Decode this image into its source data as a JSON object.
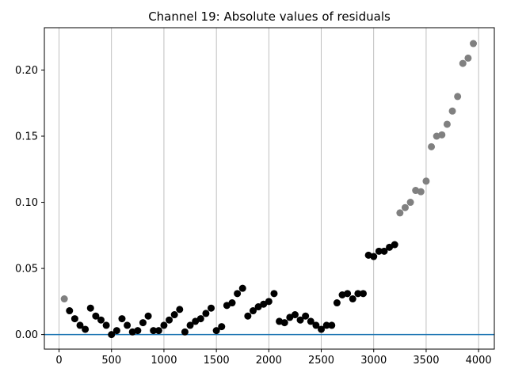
{
  "chart_data": {
    "type": "scatter",
    "title": "Channel 19: Absolute values of residuals",
    "xlabel": "",
    "ylabel": "",
    "xlim": [
      -140,
      4150
    ],
    "ylim": [
      -0.011,
      0.232
    ],
    "xticks": [
      0,
      500,
      1000,
      1500,
      2000,
      2500,
      3000,
      3500,
      4000
    ],
    "yticks": [
      0.0,
      0.05,
      0.1,
      0.15,
      0.2
    ],
    "ytick_labels": [
      "0.00",
      "0.05",
      "0.10",
      "0.15",
      "0.20"
    ],
    "grid": "x-only",
    "reference_line": {
      "y": 0.0,
      "color": "#1f77b4"
    },
    "colors": {
      "included": "#000000",
      "excluded": "#808080"
    },
    "series": [
      {
        "color": "#000000",
        "points": [
          [
            100,
            0.018
          ],
          [
            150,
            0.012
          ],
          [
            200,
            0.007
          ],
          [
            250,
            0.004
          ],
          [
            300,
            0.02
          ],
          [
            350,
            0.014
          ],
          [
            400,
            0.011
          ],
          [
            450,
            0.007
          ],
          [
            500,
            0.0
          ],
          [
            550,
            0.003
          ],
          [
            600,
            0.012
          ],
          [
            650,
            0.007
          ],
          [
            700,
            0.002
          ],
          [
            750,
            0.003
          ],
          [
            800,
            0.009
          ],
          [
            850,
            0.014
          ],
          [
            900,
            0.003
          ],
          [
            950,
            0.003
          ],
          [
            1000,
            0.007
          ],
          [
            1050,
            0.011
          ],
          [
            1100,
            0.015
          ],
          [
            1150,
            0.019
          ],
          [
            1200,
            0.002
          ],
          [
            1250,
            0.007
          ],
          [
            1300,
            0.01
          ],
          [
            1350,
            0.012
          ],
          [
            1400,
            0.016
          ],
          [
            1450,
            0.02
          ],
          [
            1500,
            0.003
          ],
          [
            1550,
            0.006
          ],
          [
            1600,
            0.022
          ],
          [
            1650,
            0.024
          ],
          [
            1700,
            0.031
          ],
          [
            1750,
            0.035
          ],
          [
            1800,
            0.014
          ],
          [
            1850,
            0.018
          ],
          [
            1900,
            0.021
          ],
          [
            1950,
            0.023
          ],
          [
            2000,
            0.025
          ],
          [
            2050,
            0.031
          ],
          [
            2100,
            0.01
          ],
          [
            2150,
            0.009
          ],
          [
            2200,
            0.013
          ],
          [
            2250,
            0.015
          ],
          [
            2300,
            0.011
          ],
          [
            2350,
            0.014
          ],
          [
            2400,
            0.01
          ],
          [
            2450,
            0.007
          ],
          [
            2500,
            0.004
          ],
          [
            2550,
            0.007
          ],
          [
            2600,
            0.007
          ],
          [
            2650,
            0.024
          ],
          [
            2700,
            0.03
          ],
          [
            2750,
            0.031
          ],
          [
            2800,
            0.027
          ],
          [
            2850,
            0.031
          ],
          [
            2900,
            0.031
          ],
          [
            2950,
            0.06
          ],
          [
            3000,
            0.059
          ],
          [
            3050,
            0.063
          ],
          [
            3100,
            0.063
          ],
          [
            3150,
            0.066
          ],
          [
            3200,
            0.068
          ]
        ]
      },
      {
        "color": "#808080",
        "points": [
          [
            50,
            0.027
          ],
          [
            3250,
            0.092
          ],
          [
            3300,
            0.096
          ],
          [
            3350,
            0.1
          ],
          [
            3400,
            0.109
          ],
          [
            3450,
            0.108
          ],
          [
            3500,
            0.116
          ],
          [
            3550,
            0.142
          ],
          [
            3600,
            0.15
          ],
          [
            3650,
            0.151
          ],
          [
            3700,
            0.159
          ],
          [
            3750,
            0.169
          ],
          [
            3800,
            0.18
          ],
          [
            3850,
            0.205
          ],
          [
            3900,
            0.209
          ],
          [
            3950,
            0.22
          ]
        ]
      }
    ]
  }
}
